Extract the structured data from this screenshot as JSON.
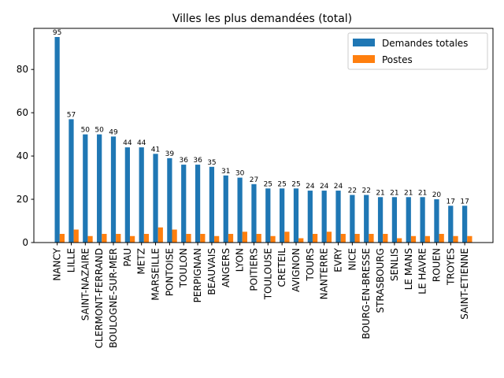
{
  "chart_data": {
    "type": "bar",
    "title": "Villes les plus demandées (total)",
    "xlabel": "",
    "ylabel": "",
    "ylim": [
      0,
      99
    ],
    "yticks": [
      0,
      20,
      40,
      60,
      80
    ],
    "grid": false,
    "legend_position": "top-right",
    "categories": [
      "NANCY",
      "LILLE",
      "SAINT-NAZAIRE",
      "CLERMONT-FERRAND",
      "BOULOGNE-SUR-MER",
      "PAU",
      "METZ",
      "MARSEILLE",
      "PONTOISE",
      "TOULON",
      "PERPIGNAN",
      "BEAUVAIS",
      "ANGERS",
      "LYON",
      "POITIERS",
      "TOULOUSE",
      "CRETEIL",
      "AVIGNON",
      "TOURS",
      "NANTERRE",
      "EVRY",
      "NICE",
      "BOURG-EN-BRESSE",
      "STRASBOURG",
      "SENLIS",
      "LE MANS",
      "LE HAVRE",
      "ROUEN",
      "TROYES",
      "SAINT-ETIENNE"
    ],
    "series": [
      {
        "name": "Demandes totales",
        "color": "#1f77b4",
        "values": [
          95,
          57,
          50,
          50,
          49,
          44,
          44,
          41,
          39,
          36,
          36,
          35,
          31,
          30,
          27,
          25,
          25,
          25,
          24,
          24,
          24,
          22,
          22,
          21,
          21,
          21,
          21,
          20,
          17,
          17
        ],
        "show_labels": true
      },
      {
        "name": "Postes",
        "color": "#ff7f0e",
        "values": [
          4,
          6,
          3,
          4,
          4,
          3,
          4,
          7,
          6,
          4,
          4,
          3,
          4,
          5,
          4,
          3,
          5,
          2,
          4,
          5,
          4,
          4,
          4,
          4,
          2,
          3,
          3,
          4,
          3,
          3
        ],
        "show_labels": false
      }
    ]
  }
}
